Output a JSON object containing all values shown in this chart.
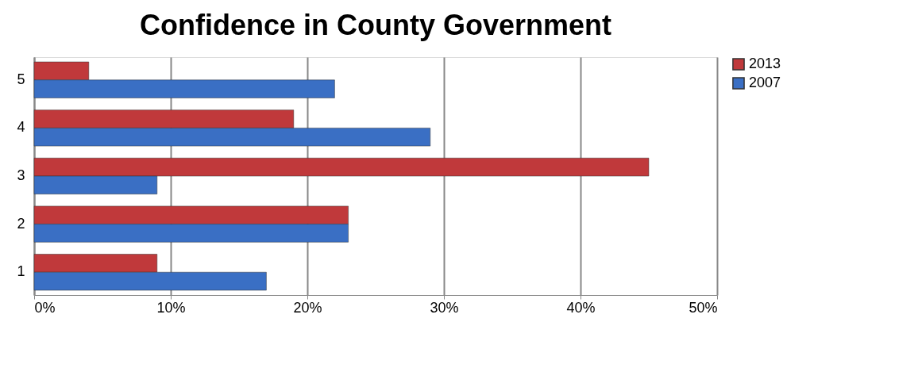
{
  "chart_data": {
    "type": "bar",
    "orientation": "horizontal",
    "title": "Confidence in County Government",
    "categories": [
      "5",
      "4",
      "3",
      "2",
      "1"
    ],
    "series": [
      {
        "name": "2013",
        "color": "#c0393b",
        "values": [
          4,
          19,
          45,
          23,
          9
        ]
      },
      {
        "name": "2007",
        "color": "#3a6fc4",
        "values": [
          22,
          29,
          9,
          23,
          17
        ]
      }
    ],
    "xlim": [
      0,
      50
    ],
    "xticks": [
      {
        "value": 0,
        "label": "0%"
      },
      {
        "value": 10,
        "label": "10%"
      },
      {
        "value": 20,
        "label": "20%"
      },
      {
        "value": 30,
        "label": "30%"
      },
      {
        "value": 40,
        "label": "40%"
      },
      {
        "value": 50,
        "label": "50%"
      }
    ],
    "grid": "x",
    "legend": "right"
  }
}
